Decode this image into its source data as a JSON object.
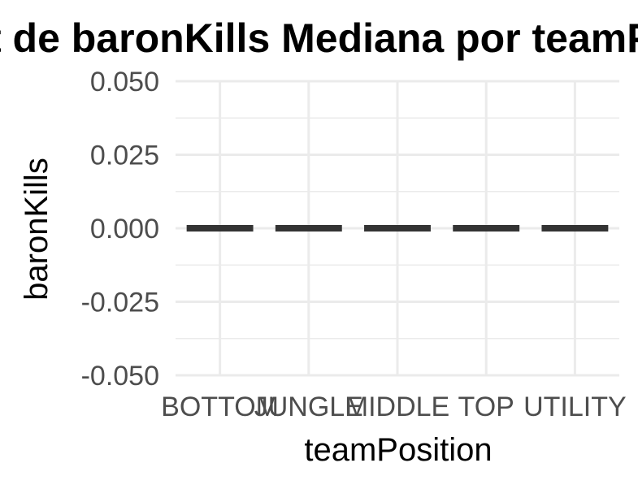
{
  "chart_data": {
    "type": "boxplot",
    "title": "Boxplot de baronKills Mediana por teamPosition",
    "xlabel": "teamPosition",
    "ylabel": "baronKills",
    "categories": [
      "BOTTOM",
      "JUNGLE",
      "MIDDLE",
      "TOP",
      "UTILITY"
    ],
    "medians": [
      0,
      0,
      0,
      0,
      0
    ],
    "ylim": [
      -0.05,
      0.05
    ],
    "yticks": [
      0.05,
      0.025,
      0.0,
      -0.025,
      -0.05
    ],
    "ytick_labels": [
      "0.050",
      "0.025",
      "0.000",
      "-0.025",
      "-0.050"
    ],
    "grid": true,
    "colors": {
      "median_line": "#333333",
      "grid": "#ebebeb",
      "tick_text": "#4d4d4d"
    }
  }
}
